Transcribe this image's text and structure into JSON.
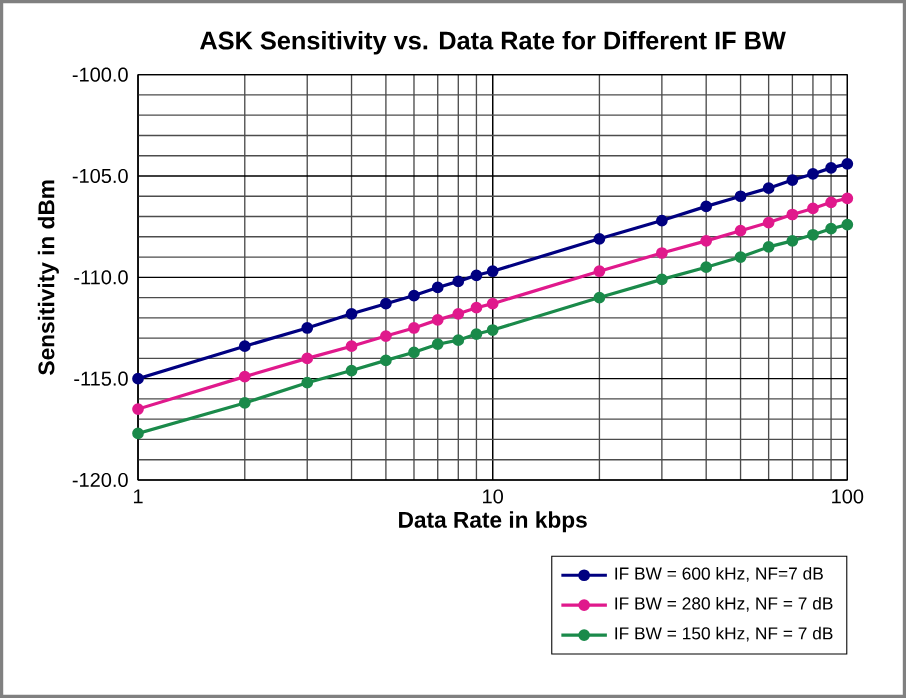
{
  "chart_data": {
    "type": "line",
    "title": "ASK Sensitivity vs. Data Rate for Different IF BW",
    "xlabel": "Data Rate in kbps",
    "ylabel": "Sensitivity in dBm",
    "x": [
      1,
      2,
      3,
      4,
      5,
      6,
      7,
      8,
      9,
      10,
      20,
      30,
      40,
      50,
      60,
      70,
      80,
      90,
      100
    ],
    "series": [
      {
        "name": "IF BW = 600 kHz, NF=7 dB",
        "color": "#000080",
        "values": [
          -115.0,
          -113.4,
          -112.5,
          -111.8,
          -111.3,
          -110.9,
          -110.5,
          -110.2,
          -109.9,
          -109.7,
          -108.1,
          -107.2,
          -106.5,
          -106.0,
          -105.6,
          -105.2,
          -104.9,
          -104.6,
          -104.4
        ]
      },
      {
        "name": "IF BW = 280 kHz, NF = 7 dB",
        "color": "#e0198c",
        "values": [
          -116.5,
          -114.9,
          -114.0,
          -113.4,
          -112.9,
          -112.5,
          -112.1,
          -111.8,
          -111.5,
          -111.3,
          -109.7,
          -108.8,
          -108.2,
          -107.7,
          -107.3,
          -106.9,
          -106.6,
          -106.3,
          -106.1
        ]
      },
      {
        "name": "IF BW = 150 kHz, NF = 7 dB",
        "color": "#1a8a4a",
        "values": [
          -117.7,
          -116.2,
          -115.2,
          -114.6,
          -114.1,
          -113.7,
          -113.3,
          -113.1,
          -112.8,
          -112.6,
          -111.0,
          -110.1,
          -109.5,
          -109.0,
          -108.5,
          -108.2,
          -107.9,
          -107.6,
          -107.4
        ]
      }
    ],
    "log": "x",
    "xlim": [
      1,
      100
    ],
    "xticks": [
      1,
      10,
      100
    ],
    "ylim": [
      -120,
      -100
    ],
    "yticks": [
      {
        "value": -120,
        "label": "-120.0"
      },
      {
        "value": -115,
        "label": "-115.0"
      },
      {
        "value": -110,
        "label": "-110.0"
      },
      {
        "value": -105,
        "label": "-105.0"
      },
      {
        "value": -100,
        "label": "-100.0"
      }
    ],
    "grid": true,
    "legend": "bottom right",
    "marker": "circle",
    "line_style": "solid"
  }
}
